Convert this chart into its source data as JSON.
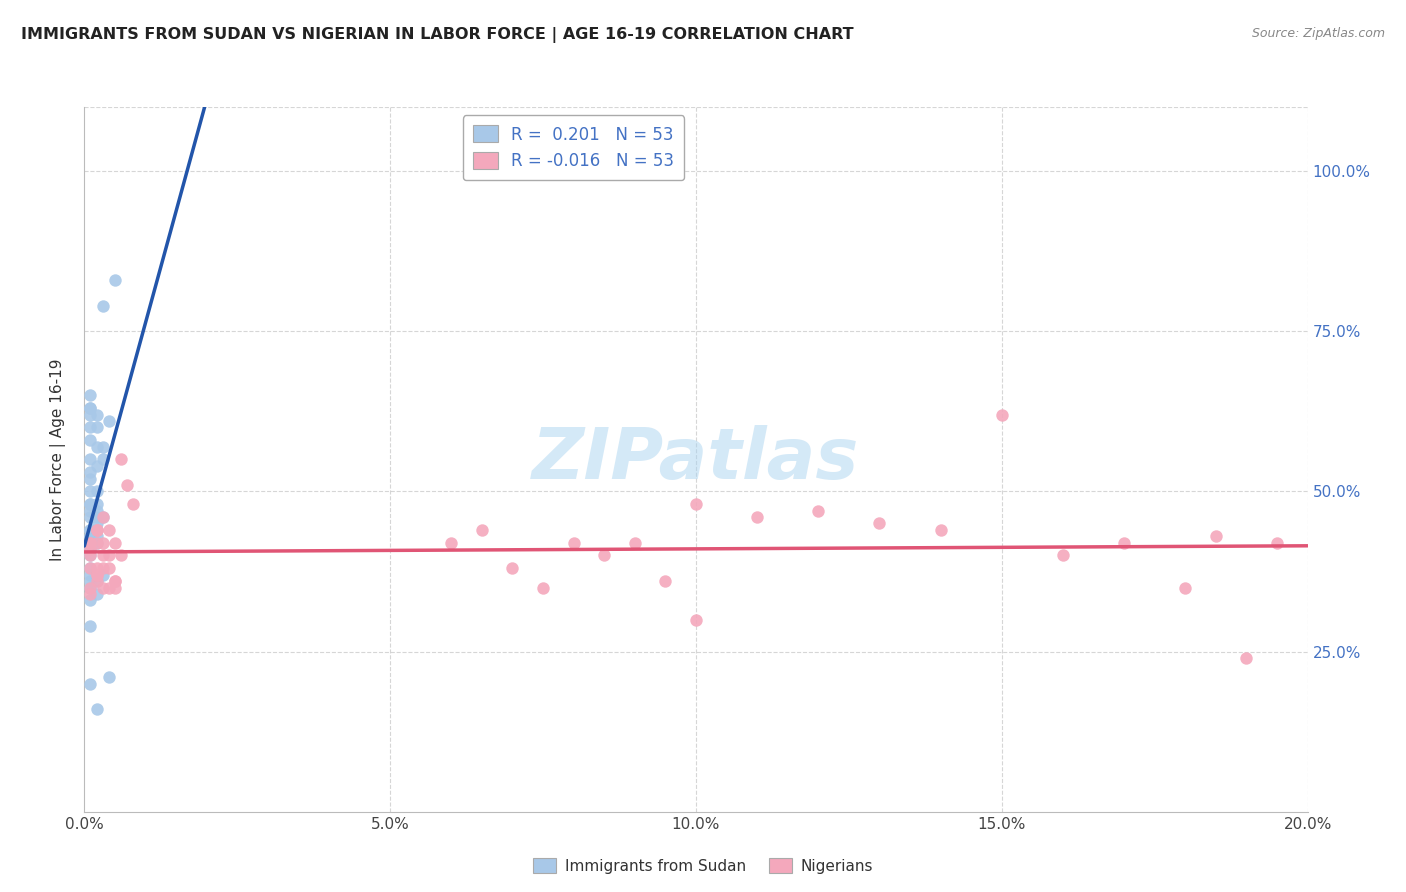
{
  "title": "IMMIGRANTS FROM SUDAN VS NIGERIAN IN LABOR FORCE | AGE 16-19 CORRELATION CHART",
  "source": "Source: ZipAtlas.com",
  "ylabel": "In Labor Force | Age 16-19",
  "xlim": [
    0.0,
    0.2
  ],
  "ylim": [
    0.0,
    1.1
  ],
  "xtick_labels": [
    "0.0%",
    "5.0%",
    "10.0%",
    "15.0%",
    "20.0%"
  ],
  "xtick_values": [
    0.0,
    0.05,
    0.1,
    0.15,
    0.2
  ],
  "ytick_labels": [
    "25.0%",
    "50.0%",
    "75.0%",
    "100.0%"
  ],
  "ytick_values": [
    0.25,
    0.5,
    0.75,
    1.0
  ],
  "legend_labels": [
    "Immigrants from Sudan",
    "Nigerians"
  ],
  "sudan_color": "#a8c8e8",
  "nigerian_color": "#f4a8bc",
  "sudan_line_color": "#2255aa",
  "nigerian_line_color": "#e05575",
  "dash_line_color": "#999999",
  "R_sudan": 0.201,
  "N_sudan": 53,
  "R_nigerian": -0.016,
  "N_nigerian": 53,
  "background_color": "#ffffff",
  "grid_color": "#cccccc",
  "watermark": "ZIPatlas",
  "watermark_color": "#aad4f0",
  "sudan_x": [
    0.001,
    0.002,
    0.001,
    0.002,
    0.003,
    0.001,
    0.001,
    0.002,
    0.001,
    0.001,
    0.001,
    0.001,
    0.002,
    0.001,
    0.001,
    0.001,
    0.002,
    0.003,
    0.001,
    0.002,
    0.001,
    0.001,
    0.001,
    0.002,
    0.001,
    0.001,
    0.003,
    0.002,
    0.001,
    0.001,
    0.001,
    0.002,
    0.001,
    0.002,
    0.003,
    0.001,
    0.002,
    0.001,
    0.001,
    0.004,
    0.005,
    0.003,
    0.004,
    0.001,
    0.001,
    0.002,
    0.001,
    0.002,
    0.001,
    0.001,
    0.001,
    0.001,
    0.002
  ],
  "sudan_y": [
    0.47,
    0.62,
    0.63,
    0.6,
    0.57,
    0.5,
    0.48,
    0.46,
    0.44,
    0.43,
    0.42,
    0.42,
    0.5,
    0.52,
    0.53,
    0.48,
    0.48,
    0.55,
    0.46,
    0.45,
    0.44,
    0.44,
    0.43,
    0.43,
    0.42,
    0.41,
    0.46,
    0.47,
    0.4,
    0.38,
    0.36,
    0.42,
    0.37,
    0.36,
    0.37,
    0.35,
    0.34,
    0.33,
    0.29,
    0.21,
    0.83,
    0.79,
    0.61,
    0.58,
    0.2,
    0.16,
    0.55,
    0.54,
    0.63,
    0.65,
    0.62,
    0.6,
    0.57
  ],
  "nigerian_x": [
    0.001,
    0.001,
    0.002,
    0.001,
    0.002,
    0.001,
    0.002,
    0.001,
    0.001,
    0.002,
    0.001,
    0.002,
    0.002,
    0.003,
    0.002,
    0.003,
    0.002,
    0.003,
    0.003,
    0.004,
    0.003,
    0.004,
    0.004,
    0.005,
    0.004,
    0.005,
    0.005,
    0.006,
    0.005,
    0.006,
    0.007,
    0.008,
    0.06,
    0.065,
    0.07,
    0.075,
    0.08,
    0.085,
    0.09,
    0.095,
    0.1,
    0.11,
    0.12,
    0.13,
    0.14,
    0.15,
    0.16,
    0.17,
    0.18,
    0.185,
    0.19,
    0.195,
    0.1
  ],
  "nigerian_y": [
    0.41,
    0.38,
    0.36,
    0.42,
    0.44,
    0.4,
    0.38,
    0.35,
    0.34,
    0.37,
    0.42,
    0.44,
    0.37,
    0.35,
    0.42,
    0.4,
    0.44,
    0.46,
    0.38,
    0.35,
    0.42,
    0.44,
    0.4,
    0.35,
    0.38,
    0.36,
    0.42,
    0.4,
    0.36,
    0.55,
    0.51,
    0.48,
    0.42,
    0.44,
    0.38,
    0.35,
    0.42,
    0.4,
    0.42,
    0.36,
    0.48,
    0.46,
    0.47,
    0.45,
    0.44,
    0.62,
    0.4,
    0.42,
    0.35,
    0.43,
    0.24,
    0.42,
    0.3
  ]
}
